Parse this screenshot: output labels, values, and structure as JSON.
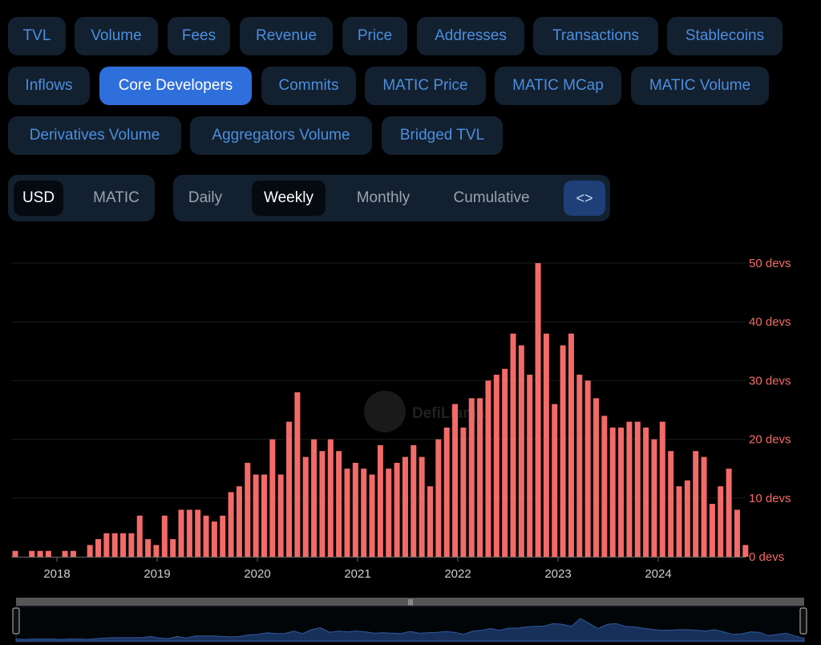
{
  "metric_tabs": [
    {
      "label": "TVL",
      "active": false
    },
    {
      "label": "Volume",
      "active": false
    },
    {
      "label": "Fees",
      "active": false
    },
    {
      "label": "Revenue",
      "active": false
    },
    {
      "label": "Price",
      "active": false
    },
    {
      "label": "Addresses",
      "active": false
    },
    {
      "label": "Transactions",
      "active": false
    },
    {
      "label": "Stablecoins",
      "active": false
    },
    {
      "label": "Inflows",
      "active": false
    },
    {
      "label": "Core Developers",
      "active": true
    },
    {
      "label": "Commits",
      "active": false
    },
    {
      "label": "MATIC Price",
      "active": false
    },
    {
      "label": "MATIC MCap",
      "active": false
    },
    {
      "label": "MATIC Volume",
      "active": false
    },
    {
      "label": "Derivatives Volume",
      "active": false
    },
    {
      "label": "Aggregators Volume",
      "active": false
    },
    {
      "label": "Bridged TVL",
      "active": false
    }
  ],
  "currency_toggle": {
    "options": [
      "USD",
      "MATIC"
    ],
    "selected": "USD"
  },
  "interval_toggle": {
    "options": [
      "Daily",
      "Weekly",
      "Monthly",
      "Cumulative"
    ],
    "selected": "Weekly"
  },
  "embed_button": {
    "label": "<>"
  },
  "watermark": {
    "text": "DefiLlama"
  },
  "colors": {
    "bar": "#f26b68",
    "axis_text": "#f26b68",
    "grid": "#1c1c1c",
    "accent": "#2f6fdc"
  },
  "chart_data": {
    "type": "bar",
    "yunit": "devs",
    "ylim": [
      0,
      50
    ],
    "yticks": [
      0,
      10,
      20,
      30,
      40,
      50
    ],
    "ytick_labels": [
      "0 devs",
      "10 devs",
      "20 devs",
      "30 devs",
      "40 devs",
      "50 devs"
    ],
    "x_tick_labels": [
      "2018",
      "2019",
      "2020",
      "2021",
      "2022",
      "2023",
      "2024"
    ],
    "grid": true,
    "values": [
      1,
      0,
      1,
      1,
      1,
      0,
      1,
      1,
      0,
      2,
      3,
      4,
      4,
      4,
      4,
      7,
      3,
      2,
      7,
      3,
      8,
      8,
      8,
      7,
      6,
      7,
      11,
      12,
      16,
      14,
      14,
      20,
      14,
      23,
      28,
      17,
      20,
      18,
      20,
      18,
      15,
      16,
      15,
      14,
      19,
      15,
      16,
      17,
      19,
      17,
      12,
      20,
      22,
      26,
      22,
      27,
      27,
      30,
      31,
      32,
      38,
      36,
      31,
      50,
      38,
      26,
      36,
      38,
      31,
      30,
      27,
      24,
      22,
      22,
      23,
      23,
      22,
      20,
      23,
      18,
      12,
      13,
      18,
      17,
      9,
      12,
      15,
      8,
      2
    ]
  }
}
